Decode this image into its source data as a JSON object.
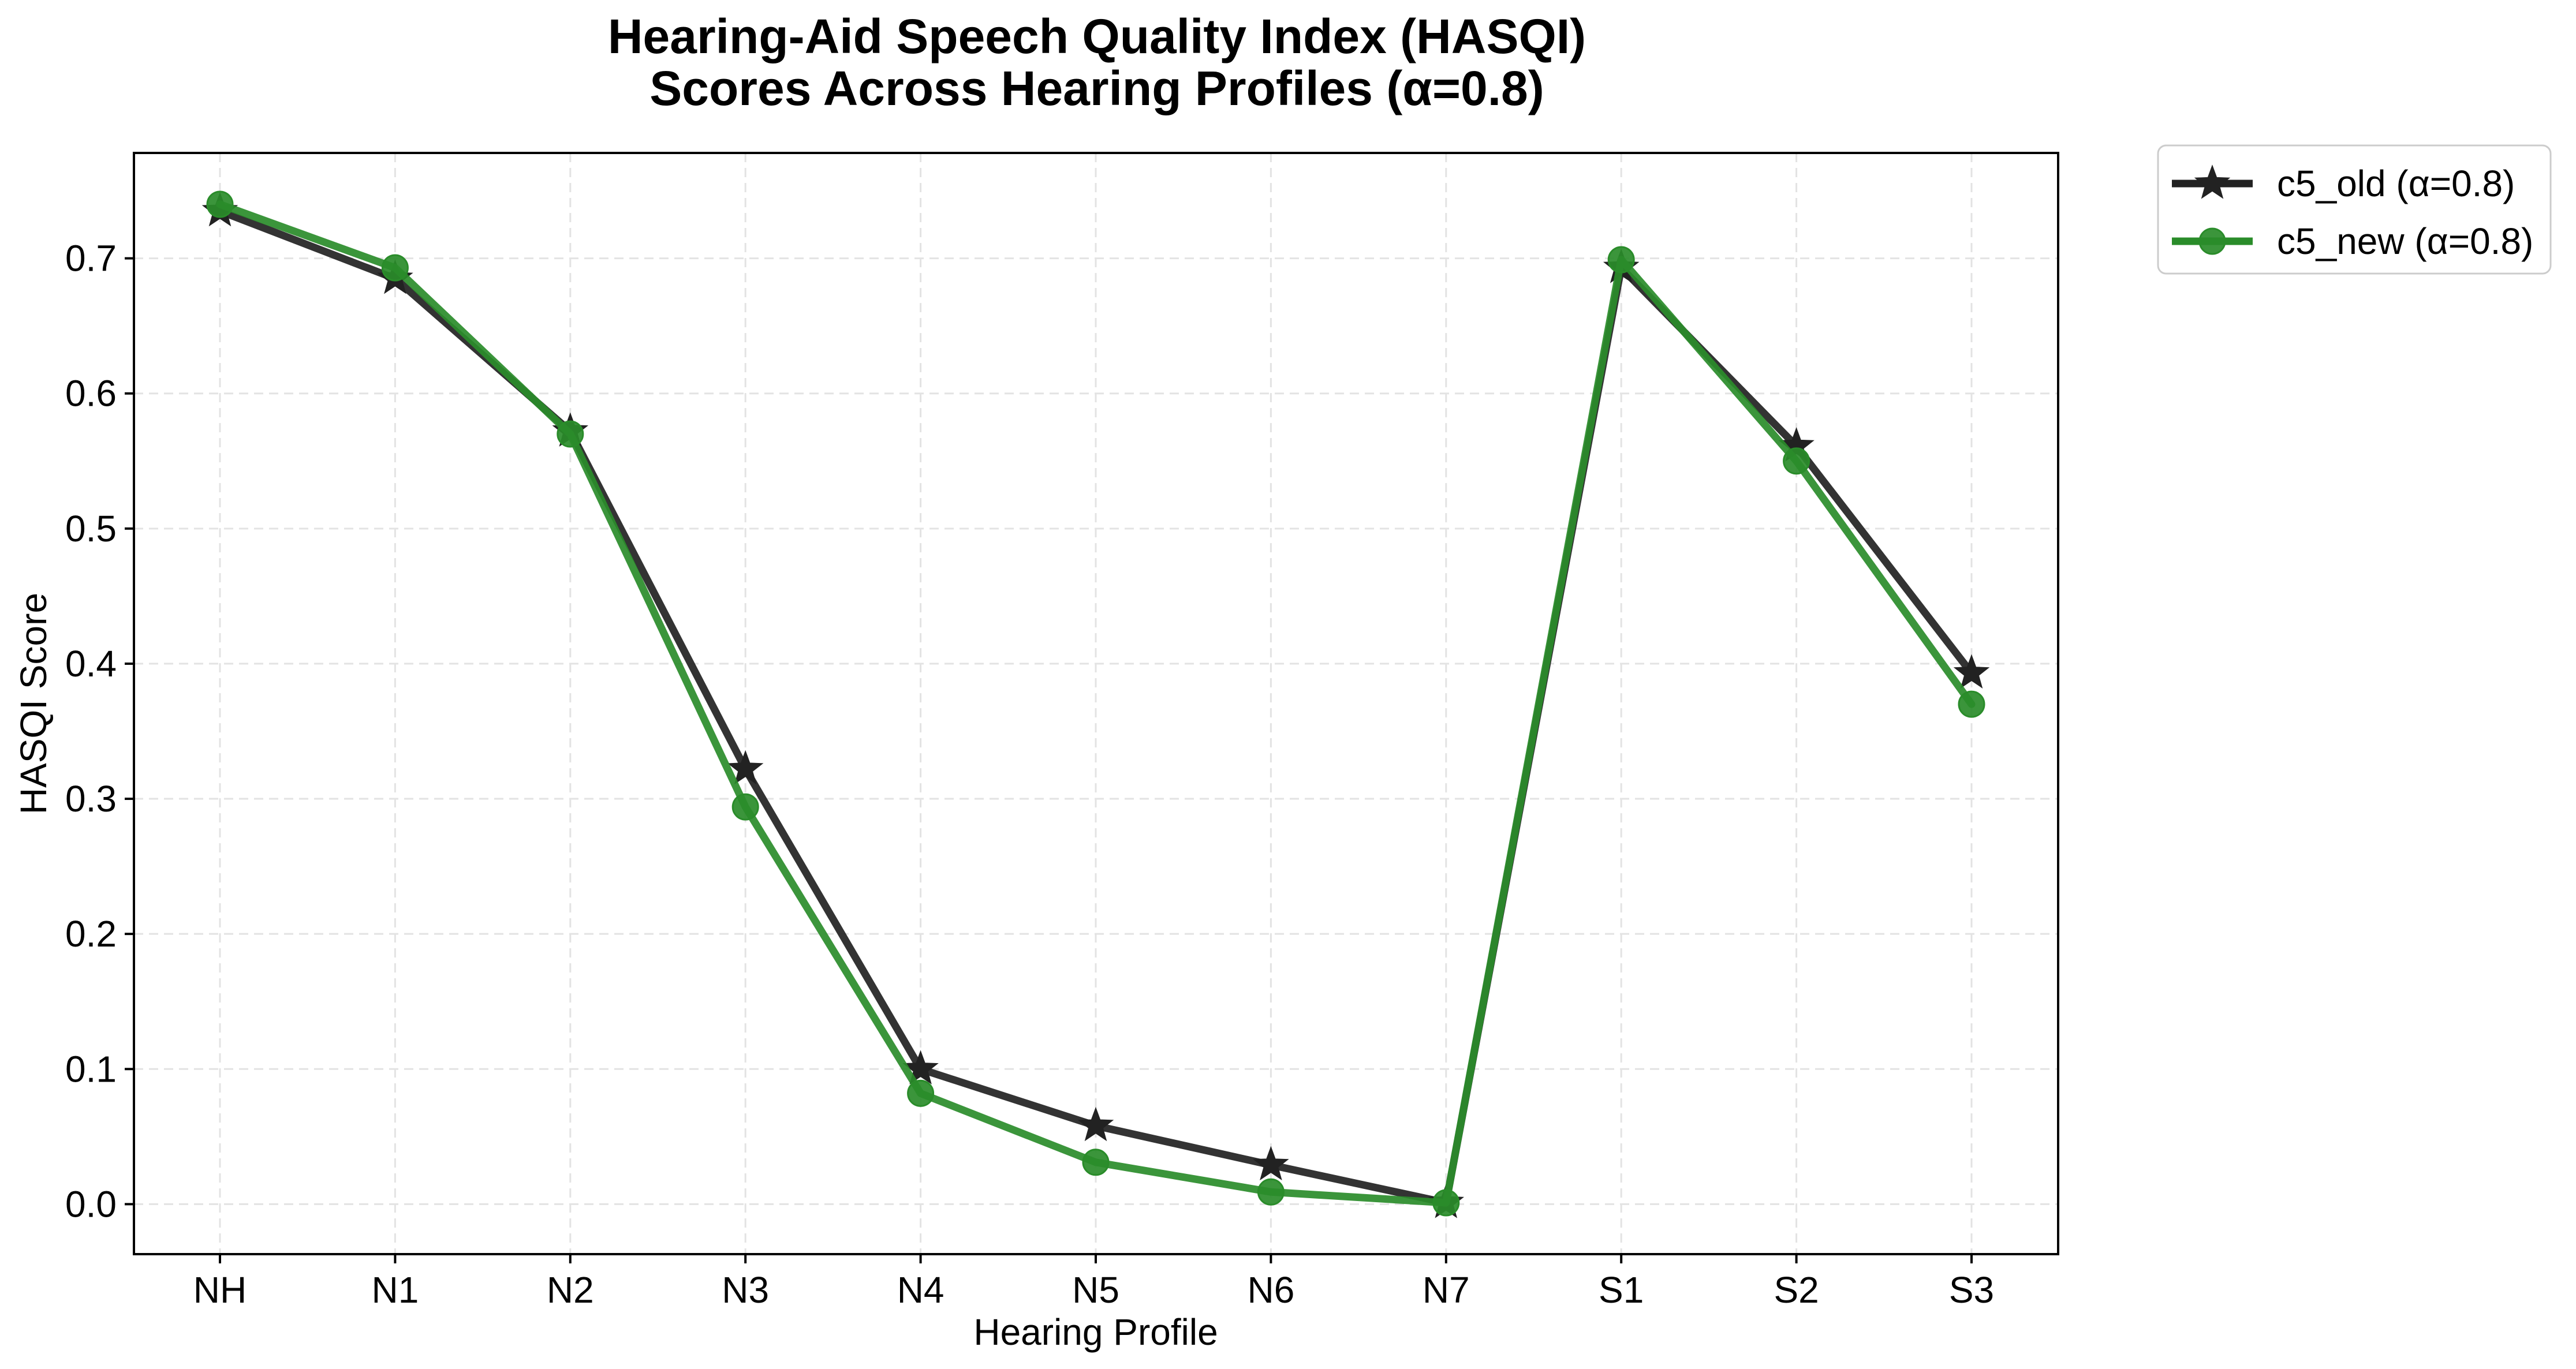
{
  "chart_data": {
    "type": "line",
    "title_line1": "Hearing-Aid Speech Quality Index (HASQI)",
    "title_line2": "Scores Across Hearing Profiles (α=0.8)",
    "xlabel": "Hearing Profile",
    "ylabel": "HASQI Score",
    "categories": [
      "NH",
      "N1",
      "N2",
      "N3",
      "N4",
      "N5",
      "N6",
      "N7",
      "S1",
      "S2",
      "S3"
    ],
    "ylim": [
      -0.037,
      0.778
    ],
    "yticks": [
      "0.0",
      "0.1",
      "0.2",
      "0.3",
      "0.4",
      "0.5",
      "0.6",
      "0.7"
    ],
    "grid": true,
    "legend_position": "outside-top-right",
    "series": [
      {
        "name": "c5_old (α=0.8)",
        "color": "#222222",
        "marker": "star",
        "values": [
          0.735,
          0.685,
          0.572,
          0.322,
          0.1,
          0.058,
          0.029,
          0.001,
          0.693,
          0.561,
          0.393
        ]
      },
      {
        "name": "c5_new (α=0.8)",
        "color": "#2a8c2a",
        "marker": "circle",
        "values": [
          0.74,
          0.693,
          0.57,
          0.294,
          0.082,
          0.031,
          0.009,
          0.001,
          0.699,
          0.55,
          0.37
        ]
      }
    ]
  }
}
